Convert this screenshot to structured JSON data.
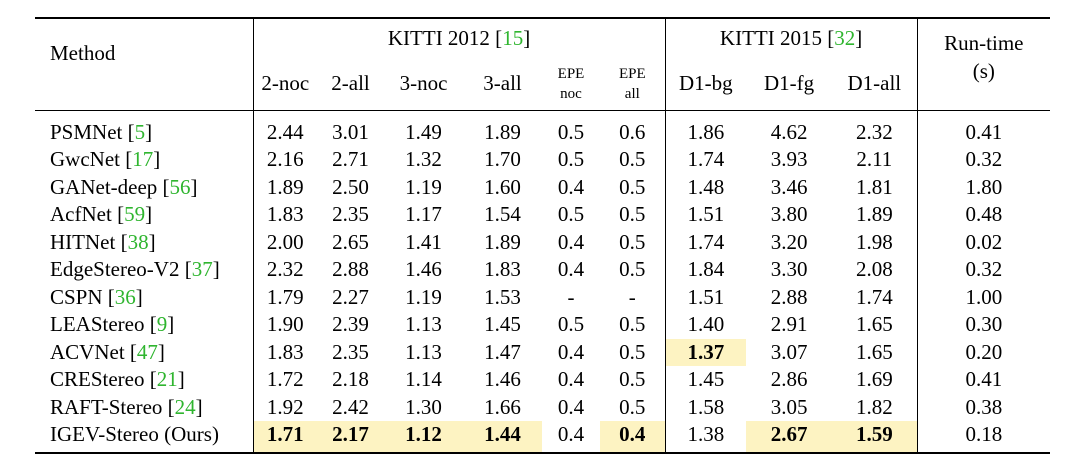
{
  "header": {
    "method": "Method",
    "kitti2012_prefix": "KITTI 2012 [",
    "kitti2012_ref": "15",
    "kitti2015_prefix": "KITTI 2015 [",
    "kitti2015_ref": "32",
    "bracket_close": "]",
    "runtime_line1": "Run-time",
    "runtime_line2": "(s)",
    "subcols": [
      "2-noc",
      "2-all",
      "3-noc",
      "3-all",
      "EPE",
      "noc",
      "EPE",
      "all",
      "D1-bg",
      "D1-fg",
      "D1-all"
    ]
  },
  "highlight_color": "#fdf3c2",
  "citation_color": "#2fb52f",
  "rows": [
    {
      "name": "PSMNet ",
      "ref": "5",
      "values": [
        "2.44",
        "3.01",
        "1.49",
        "1.89",
        "0.5",
        "0.6",
        "1.86",
        "4.62",
        "2.32",
        "0.41"
      ]
    },
    {
      "name": "GwcNet ",
      "ref": "17",
      "values": [
        "2.16",
        "2.71",
        "1.32",
        "1.70",
        "0.5",
        "0.5",
        "1.74",
        "3.93",
        "2.11",
        "0.32"
      ]
    },
    {
      "name": "GANet-deep ",
      "ref": "56",
      "values": [
        "1.89",
        "2.50",
        "1.19",
        "1.60",
        "0.4",
        "0.5",
        "1.48",
        "3.46",
        "1.81",
        "1.80"
      ]
    },
    {
      "name": "AcfNet ",
      "ref": "59",
      "values": [
        "1.83",
        "2.35",
        "1.17",
        "1.54",
        "0.5",
        "0.5",
        "1.51",
        "3.80",
        "1.89",
        "0.48"
      ]
    },
    {
      "name": "HITNet ",
      "ref": "38",
      "values": [
        "2.00",
        "2.65",
        "1.41",
        "1.89",
        "0.4",
        "0.5",
        "1.74",
        "3.20",
        "1.98",
        "0.02"
      ]
    },
    {
      "name": "EdgeStereo-V2 ",
      "ref": "37",
      "values": [
        "2.32",
        "2.88",
        "1.46",
        "1.83",
        "0.4",
        "0.5",
        "1.84",
        "3.30",
        "2.08",
        "0.32"
      ]
    },
    {
      "name": "CSPN ",
      "ref": "36",
      "values": [
        "1.79",
        "2.27",
        "1.19",
        "1.53",
        "-",
        "-",
        "1.51",
        "2.88",
        "1.74",
        "1.00"
      ]
    },
    {
      "name": "LEAStereo ",
      "ref": "9",
      "values": [
        "1.90",
        "2.39",
        "1.13",
        "1.45",
        "0.5",
        "0.5",
        "1.40",
        "2.91",
        "1.65",
        "0.30"
      ]
    },
    {
      "name": "ACVNet ",
      "ref": "47",
      "values": [
        "1.83",
        "2.35",
        "1.13",
        "1.47",
        "0.4",
        "0.5",
        "1.37",
        "3.07",
        "1.65",
        "0.20"
      ]
    },
    {
      "name": "CREStereo ",
      "ref": "21",
      "values": [
        "1.72",
        "2.18",
        "1.14",
        "1.46",
        "0.4",
        "0.5",
        "1.45",
        "2.86",
        "1.69",
        "0.41"
      ]
    },
    {
      "name": "RAFT-Stereo ",
      "ref": "24",
      "values": [
        "1.92",
        "2.42",
        "1.30",
        "1.66",
        "0.4",
        "0.5",
        "1.58",
        "3.05",
        "1.82",
        "0.38"
      ]
    },
    {
      "name": "IGEV-Stereo (Ours)",
      "ref": "",
      "values": [
        "1.71",
        "2.17",
        "1.12",
        "1.44",
        "0.4",
        "0.4",
        "1.38",
        "2.67",
        "1.59",
        "0.18"
      ]
    }
  ],
  "highlighted": [
    [
      8,
      6
    ],
    [
      11,
      0
    ],
    [
      11,
      1
    ],
    [
      11,
      2
    ],
    [
      11,
      3
    ],
    [
      11,
      5
    ],
    [
      11,
      7
    ],
    [
      11,
      8
    ]
  ]
}
